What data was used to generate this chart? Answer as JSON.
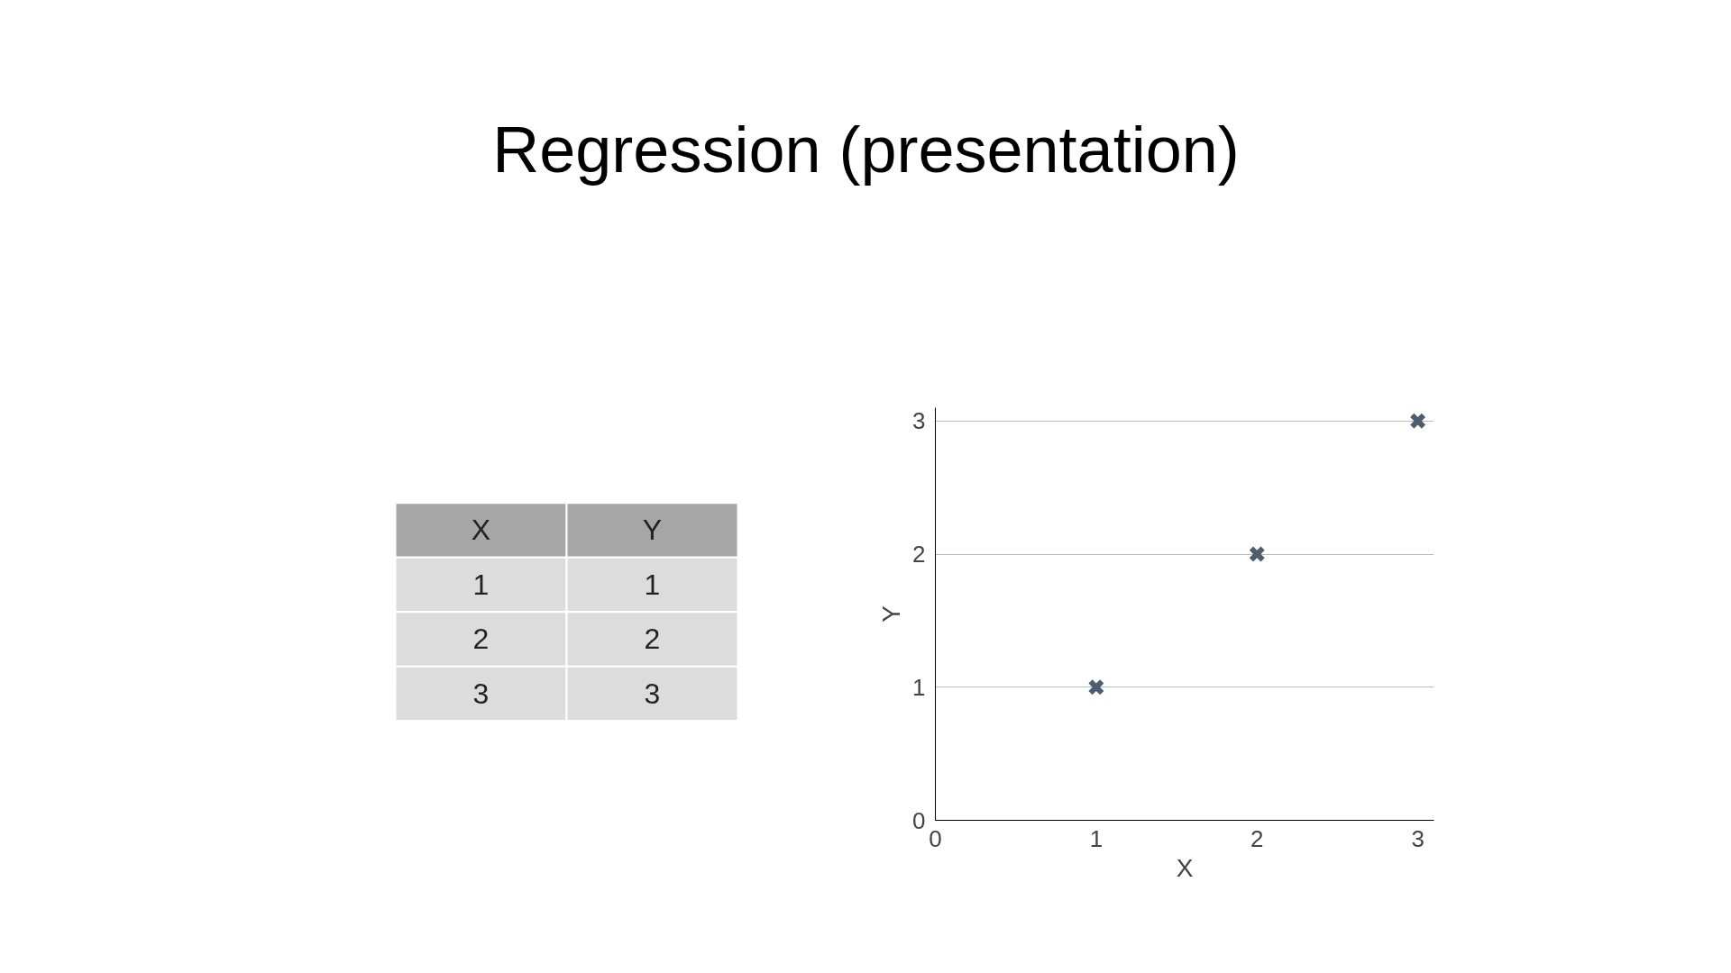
{
  "chart_data": {
    "type": "scatter",
    "title": "Regression (presentation)",
    "xlabel": "X",
    "ylabel": "Y",
    "x": [
      1,
      2,
      3
    ],
    "values": [
      1,
      2,
      3
    ],
    "color": "#4d5e6e",
    "marker": "cross",
    "xlim": [
      0,
      3.1
    ],
    "ylim": [
      0,
      3.1
    ],
    "xticks": [
      0,
      1,
      2,
      3
    ],
    "yticks": [
      0,
      1,
      2,
      3
    ],
    "grid": "y",
    "annotations": [
      "X",
      "Y",
      "1",
      "1",
      "2",
      "2",
      "3",
      "3"
    ]
  }
}
